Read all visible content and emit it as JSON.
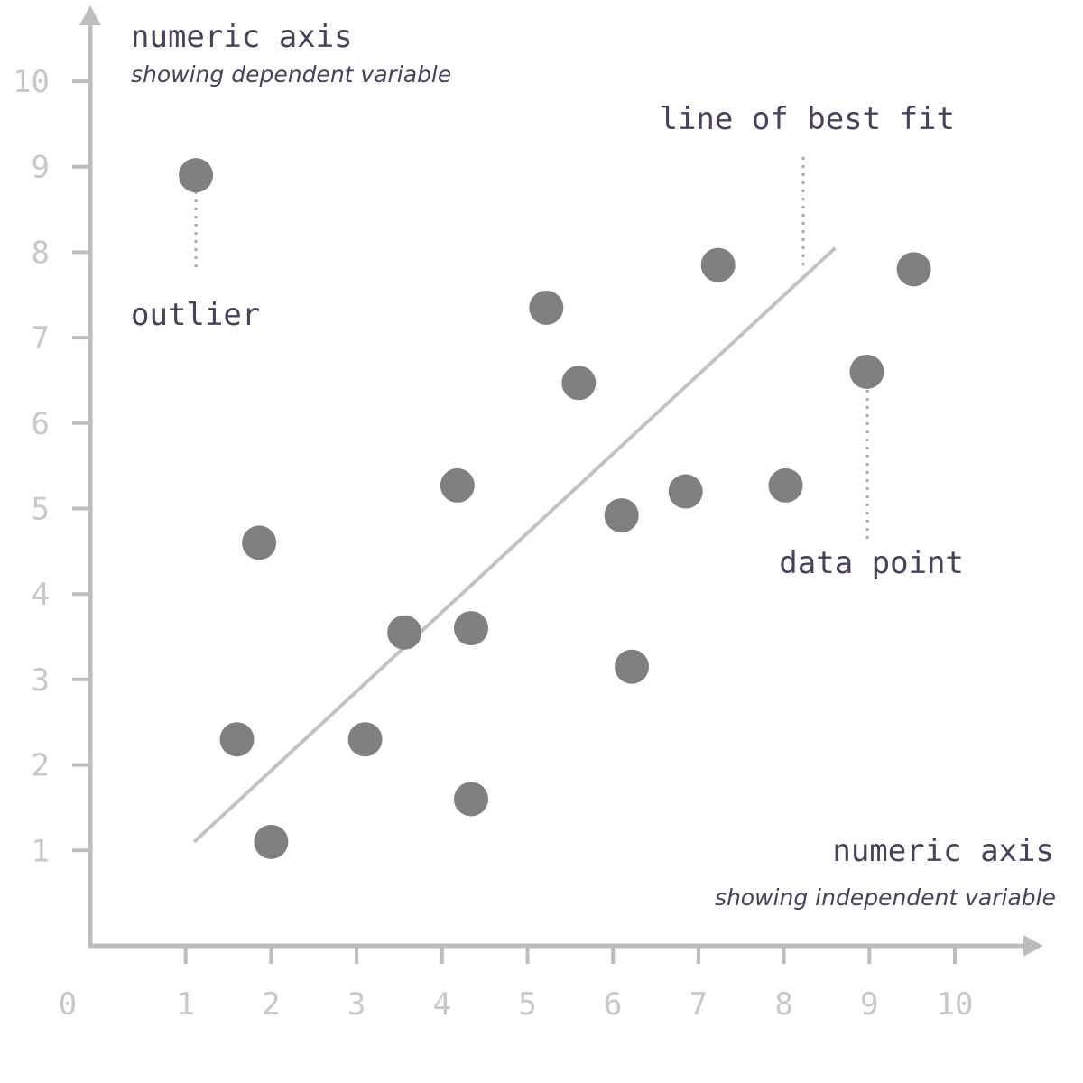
{
  "chart_data": {
    "type": "scatter",
    "xlim": [
      0,
      10
    ],
    "ylim": [
      0,
      10
    ],
    "x_ticks": [
      1,
      2,
      3,
      4,
      5,
      6,
      7,
      8,
      9,
      10
    ],
    "y_ticks": [
      1,
      2,
      3,
      4,
      5,
      6,
      7,
      8,
      9,
      10
    ],
    "origin_label": "0",
    "grid": false,
    "points": [
      {
        "x": 1.12,
        "y": 8.9
      },
      {
        "x": 1.86,
        "y": 4.6
      },
      {
        "x": 1.6,
        "y": 2.3
      },
      {
        "x": 2.0,
        "y": 1.1
      },
      {
        "x": 3.1,
        "y": 2.3
      },
      {
        "x": 3.56,
        "y": 3.55
      },
      {
        "x": 4.18,
        "y": 5.27
      },
      {
        "x": 4.34,
        "y": 3.6
      },
      {
        "x": 4.34,
        "y": 1.6
      },
      {
        "x": 5.22,
        "y": 7.35
      },
      {
        "x": 5.6,
        "y": 6.47
      },
      {
        "x": 6.1,
        "y": 4.92
      },
      {
        "x": 6.22,
        "y": 3.15
      },
      {
        "x": 6.85,
        "y": 5.2
      },
      {
        "x": 7.23,
        "y": 7.85
      },
      {
        "x": 8.02,
        "y": 5.27
      },
      {
        "x": 8.97,
        "y": 6.6
      },
      {
        "x": 9.52,
        "y": 7.8
      }
    ],
    "best_fit": {
      "x1": 1.1,
      "y1": 1.1,
      "x2": 8.6,
      "y2": 8.05
    },
    "annotations": {
      "y_axis_title": "numeric axis",
      "y_axis_subtitle": "showing dependent variable",
      "x_axis_title": "numeric axis",
      "x_axis_subtitle": "showing independent variable",
      "best_fit_label": "line of best fit",
      "outlier_label": "outlier",
      "data_point_label": "data point"
    },
    "colors": {
      "axis": "#bdbdbd",
      "tick_label": "#c8c8c8",
      "point": "#808080",
      "fit_line": "#c2c2c2",
      "annotation_text": "#4a3f5c",
      "leader_line": "#a8a8a8"
    }
  }
}
